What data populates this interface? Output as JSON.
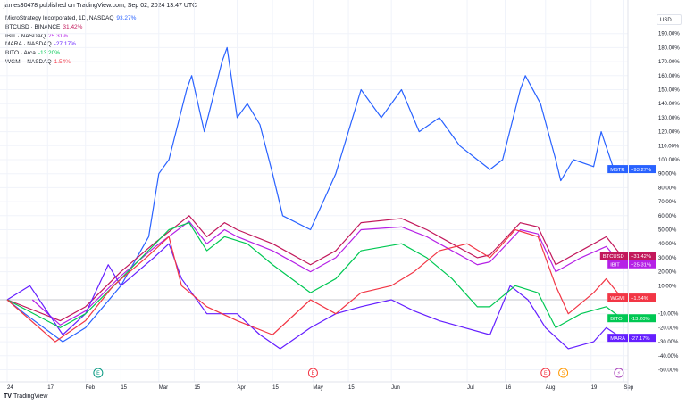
{
  "header": "james30478 published on TradingView.com, Sep 02, 2024 13:47 UTC",
  "currency": "USD",
  "brand": "TradingView",
  "chart_data": {
    "type": "line",
    "title": "MicroStrategy Incorporated, 1D, NASDAQ",
    "ylim": [
      -55,
      200
    ],
    "yticks": [
      "190.00%",
      "180.00%",
      "170.00%",
      "160.00%",
      "150.00%",
      "140.00%",
      "130.00%",
      "120.00%",
      "110.00%",
      "100.00%",
      "90.00%",
      "80.00%",
      "70.00%",
      "60.00%",
      "50.00%",
      "40.00%",
      "30.00%",
      "20.00%",
      "10.00%",
      "-10.00%",
      "-20.00%",
      "-30.00%",
      "-40.00%",
      "-50.00%"
    ],
    "ytick_values": [
      190,
      180,
      170,
      160,
      150,
      140,
      130,
      120,
      110,
      100,
      90,
      80,
      70,
      60,
      50,
      40,
      30,
      20,
      10,
      -10,
      -20,
      -30,
      -40,
      -50
    ],
    "xticks": [
      {
        "label": "24",
        "date": "2024-01-01"
      },
      {
        "label": "17",
        "date": "2024-01-17"
      },
      {
        "label": "Feb",
        "date": "2024-02-01"
      },
      {
        "label": "15",
        "date": "2024-02-15"
      },
      {
        "label": "Mar",
        "date": "2024-03-01"
      },
      {
        "label": "15",
        "date": "2024-03-15"
      },
      {
        "label": "Apr",
        "date": "2024-04-01"
      },
      {
        "label": "15",
        "date": "2024-04-15"
      },
      {
        "label": "May",
        "date": "2024-05-01"
      },
      {
        "label": "15",
        "date": "2024-05-15"
      },
      {
        "label": "Jun",
        "date": "2024-06-01"
      },
      {
        "label": "Jul",
        "date": "2024-07-01"
      },
      {
        "label": "16",
        "date": "2024-07-16"
      },
      {
        "label": "Aug",
        "date": "2024-08-01"
      },
      {
        "label": "19",
        "date": "2024-08-19"
      },
      {
        "label": "Sep",
        "date": "2024-09-01"
      }
    ],
    "grid": true,
    "series": [
      {
        "name": "MSTR",
        "legend": "MicroStrategy Incorporated, 1D, NASDAQ",
        "last": "93.27%",
        "tag": "+93.27%",
        "color": "#2962ff",
        "points": [
          [
            "2024-01-01",
            0
          ],
          [
            "2024-01-08",
            -10
          ],
          [
            "2024-01-23",
            -30
          ],
          [
            "2024-02-01",
            -20
          ],
          [
            "2024-02-15",
            10
          ],
          [
            "2024-02-26",
            45
          ],
          [
            "2024-03-01",
            90
          ],
          [
            "2024-03-05",
            100
          ],
          [
            "2024-03-12",
            150
          ],
          [
            "2024-03-14",
            160
          ],
          [
            "2024-03-19",
            120
          ],
          [
            "2024-03-26",
            170
          ],
          [
            "2024-03-28",
            180
          ],
          [
            "2024-04-01",
            130
          ],
          [
            "2024-04-05",
            140
          ],
          [
            "2024-04-10",
            125
          ],
          [
            "2024-04-15",
            90
          ],
          [
            "2024-04-19",
            60
          ],
          [
            "2024-04-30",
            50
          ],
          [
            "2024-05-10",
            90
          ],
          [
            "2024-05-15",
            120
          ],
          [
            "2024-05-20",
            150
          ],
          [
            "2024-05-28",
            130
          ],
          [
            "2024-06-05",
            150
          ],
          [
            "2024-06-12",
            120
          ],
          [
            "2024-06-20",
            130
          ],
          [
            "2024-06-28",
            110
          ],
          [
            "2024-07-05",
            100
          ],
          [
            "2024-07-10",
            93
          ],
          [
            "2024-07-15",
            100
          ],
          [
            "2024-07-22",
            150
          ],
          [
            "2024-07-24",
            160
          ],
          [
            "2024-07-30",
            140
          ],
          [
            "2024-08-05",
            100
          ],
          [
            "2024-08-07",
            85
          ],
          [
            "2024-08-12",
            100
          ],
          [
            "2024-08-20",
            95
          ],
          [
            "2024-08-23",
            120
          ],
          [
            "2024-08-28",
            93
          ],
          [
            "2024-08-31",
            93.27
          ]
        ]
      },
      {
        "name": "BTCUSD",
        "legend": "BTCUSD · BINANCE",
        "last": "31.42%",
        "tag": "+31.42%",
        "color": "#c2185b",
        "points": [
          [
            "2024-01-01",
            0
          ],
          [
            "2024-01-22",
            -15
          ],
          [
            "2024-02-01",
            -5
          ],
          [
            "2024-02-15",
            20
          ],
          [
            "2024-02-28",
            40
          ],
          [
            "2024-03-13",
            60
          ],
          [
            "2024-03-20",
            45
          ],
          [
            "2024-03-27",
            55
          ],
          [
            "2024-04-01",
            50
          ],
          [
            "2024-04-15",
            40
          ],
          [
            "2024-04-30",
            25
          ],
          [
            "2024-05-10",
            35
          ],
          [
            "2024-05-20",
            55
          ],
          [
            "2024-06-05",
            58
          ],
          [
            "2024-06-15",
            50
          ],
          [
            "2024-06-25",
            40
          ],
          [
            "2024-07-05",
            30
          ],
          [
            "2024-07-10",
            32
          ],
          [
            "2024-07-22",
            55
          ],
          [
            "2024-07-29",
            52
          ],
          [
            "2024-08-05",
            25
          ],
          [
            "2024-08-15",
            35
          ],
          [
            "2024-08-25",
            45
          ],
          [
            "2024-08-31",
            31.42
          ]
        ]
      },
      {
        "name": "IBIT",
        "legend": "IBIT · NASDAQ",
        "last": "25.31%",
        "tag": "+25.31%",
        "color": "#b520e6",
        "points": [
          [
            "2024-01-11",
            0
          ],
          [
            "2024-01-22",
            -18
          ],
          [
            "2024-02-01",
            -8
          ],
          [
            "2024-02-15",
            17
          ],
          [
            "2024-02-28",
            37
          ],
          [
            "2024-03-13",
            56
          ],
          [
            "2024-03-20",
            40
          ],
          [
            "2024-03-27",
            50
          ],
          [
            "2024-04-01",
            45
          ],
          [
            "2024-04-15",
            35
          ],
          [
            "2024-04-30",
            20
          ],
          [
            "2024-05-10",
            30
          ],
          [
            "2024-05-20",
            50
          ],
          [
            "2024-06-05",
            52
          ],
          [
            "2024-06-15",
            45
          ],
          [
            "2024-06-25",
            35
          ],
          [
            "2024-07-05",
            25
          ],
          [
            "2024-07-10",
            27
          ],
          [
            "2024-07-22",
            50
          ],
          [
            "2024-07-29",
            47
          ],
          [
            "2024-08-05",
            20
          ],
          [
            "2024-08-15",
            30
          ],
          [
            "2024-08-25",
            38
          ],
          [
            "2024-08-31",
            25.31
          ]
        ]
      },
      {
        "name": "MARA",
        "legend": "MARA · NASDAQ",
        "last": "-27.17%",
        "tag": "-27.17%",
        "color": "#651fff",
        "points": [
          [
            "2024-01-01",
            0
          ],
          [
            "2024-01-10",
            10
          ],
          [
            "2024-01-23",
            -25
          ],
          [
            "2024-02-01",
            -10
          ],
          [
            "2024-02-10",
            25
          ],
          [
            "2024-02-15",
            10
          ],
          [
            "2024-02-28",
            30
          ],
          [
            "2024-03-05",
            40
          ],
          [
            "2024-03-10",
            15
          ],
          [
            "2024-03-20",
            -10
          ],
          [
            "2024-04-01",
            -10
          ],
          [
            "2024-04-10",
            -25
          ],
          [
            "2024-04-18",
            -35
          ],
          [
            "2024-04-30",
            -20
          ],
          [
            "2024-05-10",
            -10
          ],
          [
            "2024-05-20",
            -5
          ],
          [
            "2024-06-01",
            0
          ],
          [
            "2024-06-10",
            -8
          ],
          [
            "2024-06-20",
            -15
          ],
          [
            "2024-06-30",
            -20
          ],
          [
            "2024-07-10",
            -25
          ],
          [
            "2024-07-18",
            10
          ],
          [
            "2024-07-25",
            0
          ],
          [
            "2024-08-01",
            -20
          ],
          [
            "2024-08-10",
            -35
          ],
          [
            "2024-08-20",
            -30
          ],
          [
            "2024-08-25",
            -20
          ],
          [
            "2024-08-31",
            -27.17
          ]
        ]
      },
      {
        "name": "BITO",
        "legend": "BITO · Arca",
        "last": "-13.20%",
        "tag": "-13.20%",
        "color": "#00c853",
        "points": [
          [
            "2024-01-01",
            0
          ],
          [
            "2024-01-22",
            -20
          ],
          [
            "2024-02-01",
            -10
          ],
          [
            "2024-02-15",
            15
          ],
          [
            "2024-03-05",
            50
          ],
          [
            "2024-03-13",
            55
          ],
          [
            "2024-03-20",
            35
          ],
          [
            "2024-03-27",
            45
          ],
          [
            "2024-04-05",
            40
          ],
          [
            "2024-04-15",
            25
          ],
          [
            "2024-04-30",
            5
          ],
          [
            "2024-05-10",
            15
          ],
          [
            "2024-05-20",
            35
          ],
          [
            "2024-06-05",
            40
          ],
          [
            "2024-06-15",
            30
          ],
          [
            "2024-06-25",
            15
          ],
          [
            "2024-07-05",
            -5
          ],
          [
            "2024-07-10",
            -5
          ],
          [
            "2024-07-20",
            10
          ],
          [
            "2024-07-29",
            5
          ],
          [
            "2024-08-05",
            -20
          ],
          [
            "2024-08-15",
            -10
          ],
          [
            "2024-08-25",
            -5
          ],
          [
            "2024-08-31",
            -13.2
          ]
        ]
      },
      {
        "name": "WGMI",
        "legend": "WGMI · NASDAQ",
        "last": "1.54%",
        "tag": "+1.54%",
        "color": "#f23645",
        "points": [
          [
            "2024-01-01",
            0
          ],
          [
            "2024-01-20",
            -30
          ],
          [
            "2024-02-01",
            -15
          ],
          [
            "2024-02-12",
            10
          ],
          [
            "2024-02-25",
            30
          ],
          [
            "2024-03-05",
            45
          ],
          [
            "2024-03-10",
            10
          ],
          [
            "2024-03-20",
            -5
          ],
          [
            "2024-04-01",
            -15
          ],
          [
            "2024-04-15",
            -25
          ],
          [
            "2024-04-30",
            0
          ],
          [
            "2024-05-10",
            -10
          ],
          [
            "2024-05-20",
            5
          ],
          [
            "2024-06-01",
            10
          ],
          [
            "2024-06-10",
            20
          ],
          [
            "2024-06-20",
            35
          ],
          [
            "2024-07-01",
            40
          ],
          [
            "2024-07-10",
            30
          ],
          [
            "2024-07-20",
            50
          ],
          [
            "2024-07-29",
            45
          ],
          [
            "2024-08-05",
            10
          ],
          [
            "2024-08-10",
            -10
          ],
          [
            "2024-08-20",
            5
          ],
          [
            "2024-08-25",
            15
          ],
          [
            "2024-08-31",
            1.54
          ]
        ]
      }
    ],
    "events": [
      {
        "type": "earnings",
        "glyph": "E",
        "date": "2024-02-06",
        "color": "#089981"
      },
      {
        "type": "earnings",
        "glyph": "E",
        "date": "2024-05-01",
        "color": "#f23645"
      },
      {
        "type": "earnings",
        "glyph": "E",
        "date": "2024-08-01",
        "color": "#f23645"
      },
      {
        "type": "split",
        "glyph": "S",
        "date": "2024-08-08",
        "color": "#ff9800"
      },
      {
        "type": "news",
        "glyph": "⚡",
        "date": "2024-08-30",
        "color": "#ab47bc"
      }
    ]
  }
}
